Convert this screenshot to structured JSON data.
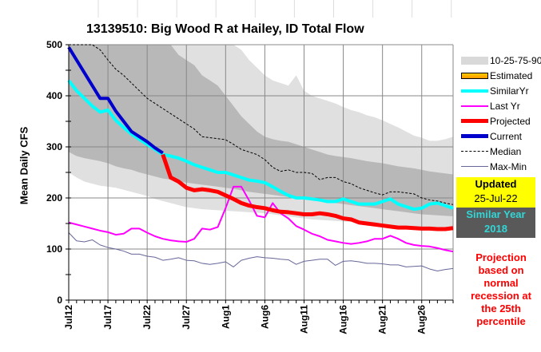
{
  "chart_data": {
    "type": "line",
    "title": "13139510: Big Wood R at Hailey, ID Total Flow",
    "xlabel": "",
    "ylabel": "Mean Daily CFS",
    "ylim": [
      0,
      500
    ],
    "yticks": [
      0,
      100,
      200,
      300,
      400,
      500
    ],
    "x_start": "Jul12",
    "x_days": 50,
    "xtick_labels": [
      "Jul12",
      "Jul17",
      "Jul22",
      "Jul27",
      "Aug1",
      "Aug6",
      "Aug11",
      "Aug16",
      "Aug21",
      "Aug26"
    ],
    "grid": true,
    "legend_position": "right",
    "bands": {
      "p10": [
        290,
        282,
        278,
        275,
        272,
        268,
        262,
        258,
        255,
        250,
        246,
        242,
        238,
        236,
        232,
        230,
        228,
        226,
        224,
        222,
        220,
        218,
        215,
        212,
        210,
        208,
        206,
        204,
        202,
        200,
        198,
        196,
        194,
        192,
        190,
        188,
        186,
        184,
        182,
        180,
        178,
        176,
        174,
        172,
        170,
        168,
        167,
        166,
        165,
        164
      ],
      "p25": [
        500,
        500,
        500,
        500,
        500,
        500,
        500,
        500,
        500,
        500,
        500,
        500,
        500,
        500,
        480,
        470,
        460,
        440,
        430,
        420,
        400,
        380,
        360,
        345,
        330,
        320,
        315,
        312,
        310,
        305,
        300,
        295,
        290,
        285,
        282,
        280,
        278,
        275,
        272,
        270,
        268,
        265,
        262,
        260,
        258,
        255,
        252,
        250,
        248,
        246
      ],
      "p75": [
        500,
        500,
        500,
        500,
        500,
        500,
        500,
        500,
        500,
        500,
        500,
        500,
        500,
        500,
        500,
        500,
        500,
        500,
        500,
        500,
        500,
        500,
        500,
        500,
        500,
        500,
        500,
        500,
        500,
        500,
        500,
        500,
        500,
        500,
        500,
        500,
        500,
        500,
        500,
        500,
        500,
        500,
        500,
        500,
        500,
        500,
        500,
        500,
        500,
        500
      ],
      "p90_upper": [
        500,
        500,
        500,
        500,
        500,
        500,
        500,
        500,
        500,
        500,
        500,
        500,
        500,
        500,
        500,
        500,
        500,
        500,
        500,
        500,
        500,
        500,
        490,
        470,
        455,
        440,
        430,
        425,
        420,
        440,
        410,
        400,
        395,
        390,
        385,
        378,
        372,
        368,
        362,
        358,
        352,
        345,
        338,
        330,
        322,
        318,
        312,
        312,
        315,
        320
      ],
      "p90_lower": [
        250,
        240,
        232,
        228,
        224,
        222,
        220,
        216,
        212,
        208,
        204,
        198,
        194,
        190,
        186,
        182,
        180,
        178,
        177,
        176,
        175,
        174,
        173,
        172,
        171,
        170,
        168,
        166,
        164,
        162,
        160,
        158,
        157,
        156,
        155,
        154,
        153,
        152,
        151,
        150,
        148,
        146,
        145,
        144,
        142,
        140,
        139,
        138,
        138,
        137
      ]
    },
    "series": [
      {
        "name": "Current",
        "color": "#0000cc",
        "values": [
          495,
          470,
          445,
          420,
          395,
          395,
          370,
          350,
          330,
          320,
          310,
          298,
          288,
          null,
          null,
          null,
          null,
          null,
          null,
          null,
          null,
          null,
          null,
          null,
          null,
          null,
          null,
          null,
          null,
          null,
          null,
          null,
          null,
          null,
          null,
          null,
          null,
          null,
          null,
          null,
          null,
          null,
          null,
          null,
          null,
          null,
          null,
          null,
          null,
          null
        ]
      },
      {
        "name": "SimilarYr",
        "color": "#00ffff",
        "values": [
          430,
          410,
          395,
          380,
          368,
          372,
          352,
          338,
          325,
          315,
          305,
          295,
          285,
          282,
          278,
          272,
          265,
          260,
          255,
          250,
          250,
          245,
          240,
          235,
          233,
          230,
          222,
          213,
          205,
          200,
          200,
          198,
          196,
          193,
          193,
          198,
          193,
          188,
          188,
          188,
          193,
          198,
          188,
          183,
          178,
          180,
          188,
          190,
          185,
          180
        ]
      },
      {
        "name": "Last Yr",
        "color": "#ff00ff",
        "values": [
          152,
          148,
          144,
          140,
          136,
          133,
          128,
          130,
          140,
          140,
          132,
          125,
          120,
          117,
          115,
          114,
          120,
          140,
          138,
          143,
          180,
          222,
          222,
          195,
          165,
          162,
          190,
          170,
          160,
          145,
          138,
          130,
          125,
          118,
          115,
          112,
          110,
          112,
          115,
          120,
          120,
          126,
          120,
          112,
          108,
          106,
          105,
          102,
          98,
          95
        ]
      },
      {
        "name": "Projected",
        "color": "#ff0000",
        "values": [
          null,
          null,
          null,
          null,
          null,
          null,
          null,
          null,
          null,
          null,
          null,
          null,
          285,
          240,
          232,
          220,
          215,
          217,
          215,
          212,
          205,
          198,
          190,
          185,
          182,
          180,
          176,
          173,
          172,
          170,
          168,
          168,
          170,
          168,
          165,
          160,
          158,
          152,
          150,
          148,
          146,
          144,
          142,
          142,
          141,
          140,
          140,
          139,
          139,
          141
        ]
      },
      {
        "name": "Median",
        "color": "#000000",
        "values": [
          550,
          530,
          510,
          500,
          490,
          470,
          452,
          440,
          425,
          410,
          395,
          385,
          375,
          365,
          355,
          345,
          335,
          320,
          318,
          316,
          314,
          305,
          295,
          290,
          285,
          275,
          260,
          252,
          255,
          250,
          250,
          248,
          236,
          240,
          240,
          232,
          228,
          220,
          215,
          210,
          206,
          212,
          212,
          210,
          208,
          200,
          196,
          194,
          190,
          187
        ]
      },
      {
        "name": "Max-Min",
        "color": "#666699",
        "values": [
          132,
          116,
          114,
          118,
          108,
          103,
          100,
          96,
          90,
          90,
          86,
          84,
          78,
          80,
          83,
          78,
          77,
          72,
          70,
          72,
          75,
          65,
          78,
          82,
          85,
          83,
          82,
          80,
          79,
          70,
          76,
          78,
          80,
          80,
          68,
          76,
          77,
          75,
          72,
          72,
          71,
          69,
          69,
          65,
          66,
          67,
          61,
          57,
          60,
          62
        ]
      }
    ],
    "legend": [
      {
        "label": "10-25-75-90",
        "style": "band"
      },
      {
        "label": "Estimated",
        "style": "estimated"
      },
      {
        "label": "SimilarYr",
        "style": "line"
      },
      {
        "label": "Last Yr",
        "style": "line"
      },
      {
        "label": "Projected",
        "style": "line"
      },
      {
        "label": "Current",
        "style": "line"
      },
      {
        "label": "Median",
        "style": "dashed"
      },
      {
        "label": "Max-Min",
        "style": "thin"
      }
    ]
  },
  "info": {
    "updated_label": "Updated",
    "updated_date": "25-Jul-22",
    "similar_label": "Similar Year",
    "similar_year": "2018",
    "note": "Projection based on normal recession at the 25th percentile"
  }
}
